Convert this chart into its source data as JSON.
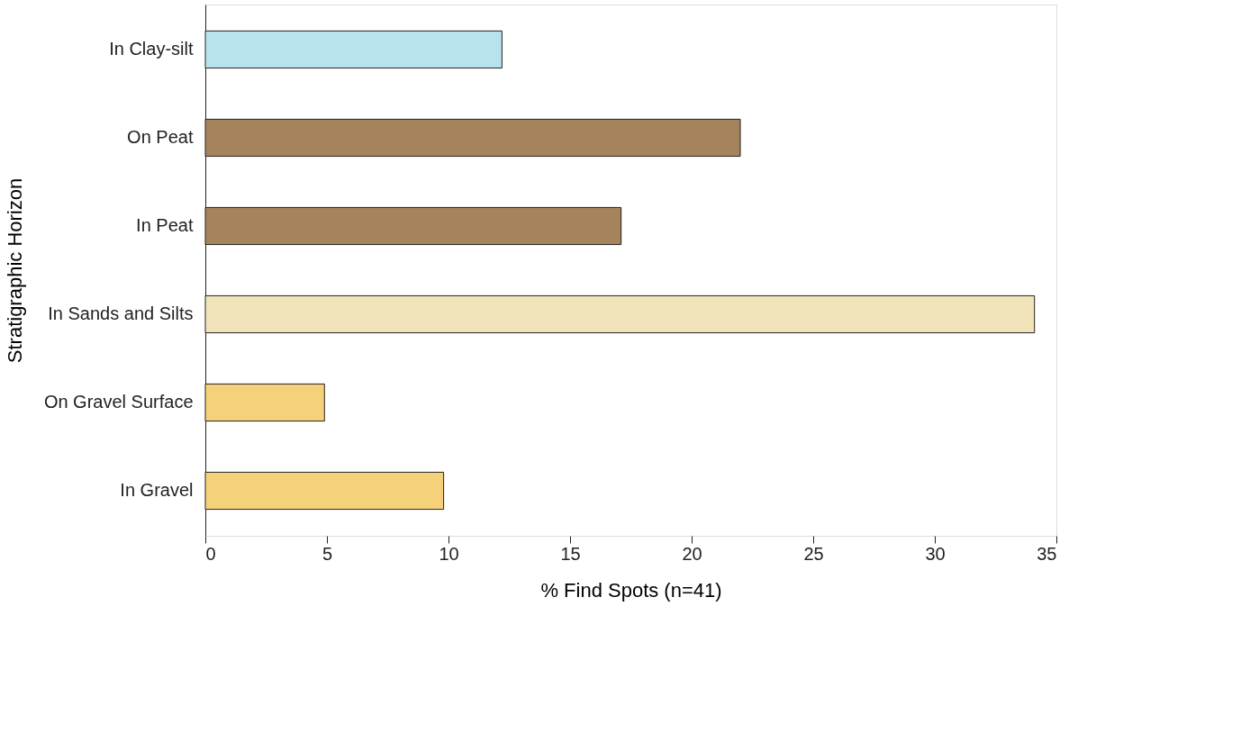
{
  "chart_data": {
    "type": "bar",
    "orientation": "horizontal",
    "xlabel": "% Find Spots (n=41)",
    "ylabel": "Stratigraphic Horizon",
    "categories": [
      "In Clay-silt",
      "On Peat",
      "In Peat",
      "In Sands and Silts",
      "On Gravel Surface",
      "In Gravel"
    ],
    "values": [
      12.2,
      22.0,
      17.1,
      34.1,
      4.9,
      9.8
    ],
    "colors": [
      "#b8e2ee",
      "#a5835c",
      "#a5835c",
      "#f2e4ba",
      "#f5d27a",
      "#f5d27a"
    ],
    "xlim": [
      0,
      35
    ],
    "xticks": [
      0,
      5,
      10,
      15,
      20,
      25,
      30,
      35
    ],
    "grid": false,
    "legend": false
  }
}
